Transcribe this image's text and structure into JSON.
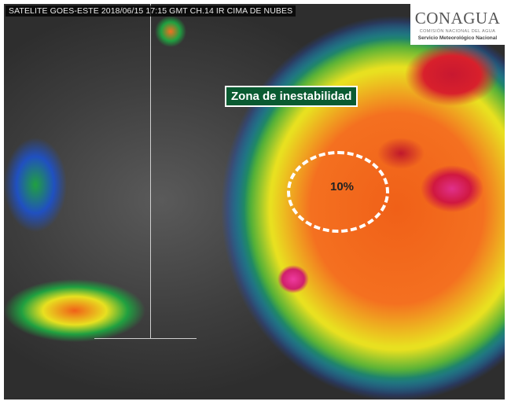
{
  "image_title": "SATELITE GOES-ESTE 2018/06/15 17:15 GMT CH.14 IR CIMA DE NUBES",
  "logo": {
    "name": "CONAGUA",
    "subtitle": "COMISIÓN NACIONAL DEL AGUA",
    "service": "Servicio Meteorológico Nacional"
  },
  "annotation": {
    "label": "Zona de inestabilidad",
    "probability": "10%"
  },
  "colors": {
    "deep_convection": "#e0308a",
    "high_cloud": "#d8202c",
    "orange": "#f47020",
    "yellow": "#e8e020",
    "green": "#20a040",
    "blue": "#2050c0",
    "clear": "#3e3e3e"
  }
}
